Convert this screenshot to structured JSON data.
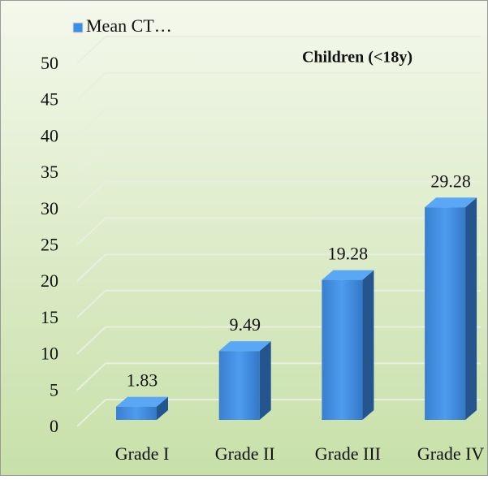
{
  "chart_data": {
    "type": "bar",
    "title": "Children (<18y)",
    "categories": [
      "Grade I",
      "Grade II",
      "Grade III",
      "Grade IV"
    ],
    "series": [
      {
        "name": "Mean CT…",
        "color": "#3d8ee0",
        "values": [
          1.83,
          9.49,
          19.28,
          29.28
        ]
      }
    ],
    "ylim": [
      0,
      50
    ],
    "yticks": [
      0,
      5,
      10,
      15,
      20,
      25,
      30,
      35,
      40,
      45,
      50
    ],
    "grid": true,
    "legend": "top-left"
  }
}
